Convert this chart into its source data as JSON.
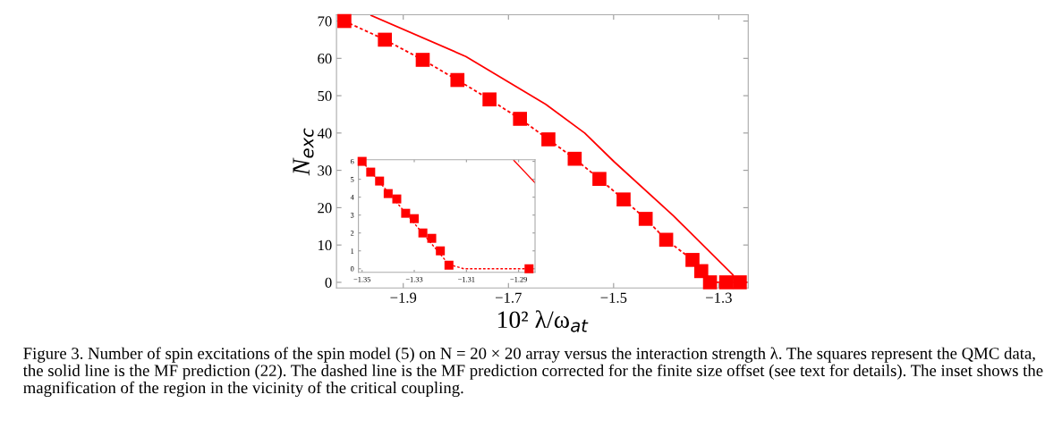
{
  "chart_data": [
    {
      "type": "scatter",
      "xlabel": "10² λ/ω$_{at}$",
      "ylabel": "N$_{exc}$",
      "xlim": [
        -2.027,
        -1.244
      ],
      "ylim": [
        -1.5,
        71.7
      ],
      "xticks": [
        -1.9,
        -1.7,
        -1.5,
        -1.3
      ],
      "yticks": [
        0,
        10,
        20,
        30,
        40,
        50,
        60,
        70
      ],
      "grid": false,
      "legend": false,
      "series": [
        {
          "type": "line",
          "line_style": "dashed",
          "marker": "none",
          "color": "#ff0000",
          "x": [
            -2.012,
            -1.935,
            -1.863,
            -1.797,
            -1.736,
            -1.678,
            -1.624,
            -1.574,
            -1.527,
            -1.481,
            -1.439,
            -1.4,
            -1.35,
            -1.311,
            -1.244
          ],
          "values": [
            70,
            65,
            59.6,
            54.2,
            49,
            43.8,
            38.3,
            33.1,
            27.7,
            22.2,
            17,
            11.4,
            6,
            0,
            0
          ]
        },
        {
          "type": "line",
          "line_style": "solid",
          "marker": "none",
          "color": "#ff0000",
          "x": [
            -1.961,
            -1.781,
            -1.629,
            -1.555,
            -1.499,
            -1.386,
            -1.273,
            -1.27
          ],
          "values": [
            71.5,
            60.5,
            47.7,
            40,
            32.3,
            17.8,
            2,
            0
          ]
        },
        {
          "marker": "square",
          "color": "#ff0000",
          "x": [
            -2.012,
            -1.935,
            -1.863,
            -1.797,
            -1.736,
            -1.678,
            -1.624,
            -1.574,
            -1.527,
            -1.481,
            -1.439,
            -1.4,
            -1.35,
            -1.3333,
            -1.3167,
            -1.286,
            -1.26
          ],
          "values": [
            70,
            65,
            59.6,
            54.2,
            49,
            43.8,
            38.3,
            33.1,
            27.7,
            22.2,
            17,
            11.4,
            6,
            3,
            0,
            0,
            0
          ]
        }
      ],
      "annotations": [
        "Figure 3. Number of spin excitations of the spin model (5) on N = 20 × 20 array versus the interaction strength λ. The squares represent the QMC data, the solid line is the MF prediction (22). The dashed line is the MF prediction corrected for the finite size offset (see text for details). The inset shows the magnification of the region in the vicinity of the critical coupling."
      ]
    },
    {
      "type": "scatter",
      "xlim": [
        -1.3514,
        -1.2837
      ],
      "ylim": [
        -0.2,
        6.09
      ],
      "xticks": [
        -1.35,
        -1.33,
        -1.31,
        -1.29
      ],
      "yticks": [
        0,
        1,
        2,
        3,
        4,
        5,
        6
      ],
      "grid": false,
      "legend": false,
      "series": [
        {
          "type": "line",
          "line_style": "dashed",
          "marker": "none",
          "color": "#ff0000",
          "x": [
            -1.35,
            -1.3167,
            -1.311,
            -1.2837
          ],
          "values": [
            6,
            0.24,
            0,
            0
          ]
        },
        {
          "type": "line",
          "line_style": "solid",
          "marker": "none",
          "color": "#ff0000",
          "x": [
            -1.2918,
            -1.2837
          ],
          "values": [
            6.05,
            4.8
          ]
        },
        {
          "marker": "square",
          "color": "#ff0000",
          "x": [
            -1.35,
            -1.3467,
            -1.3433,
            -1.34,
            -1.3367,
            -1.3333,
            -1.33,
            -1.3267,
            -1.3233,
            -1.32,
            -1.3167,
            -1.286
          ],
          "values": [
            6,
            5.4,
            4.9,
            4.2,
            3.9,
            3.1,
            2.8,
            2,
            1.7,
            1,
            0.2,
            0
          ]
        }
      ]
    }
  ]
}
